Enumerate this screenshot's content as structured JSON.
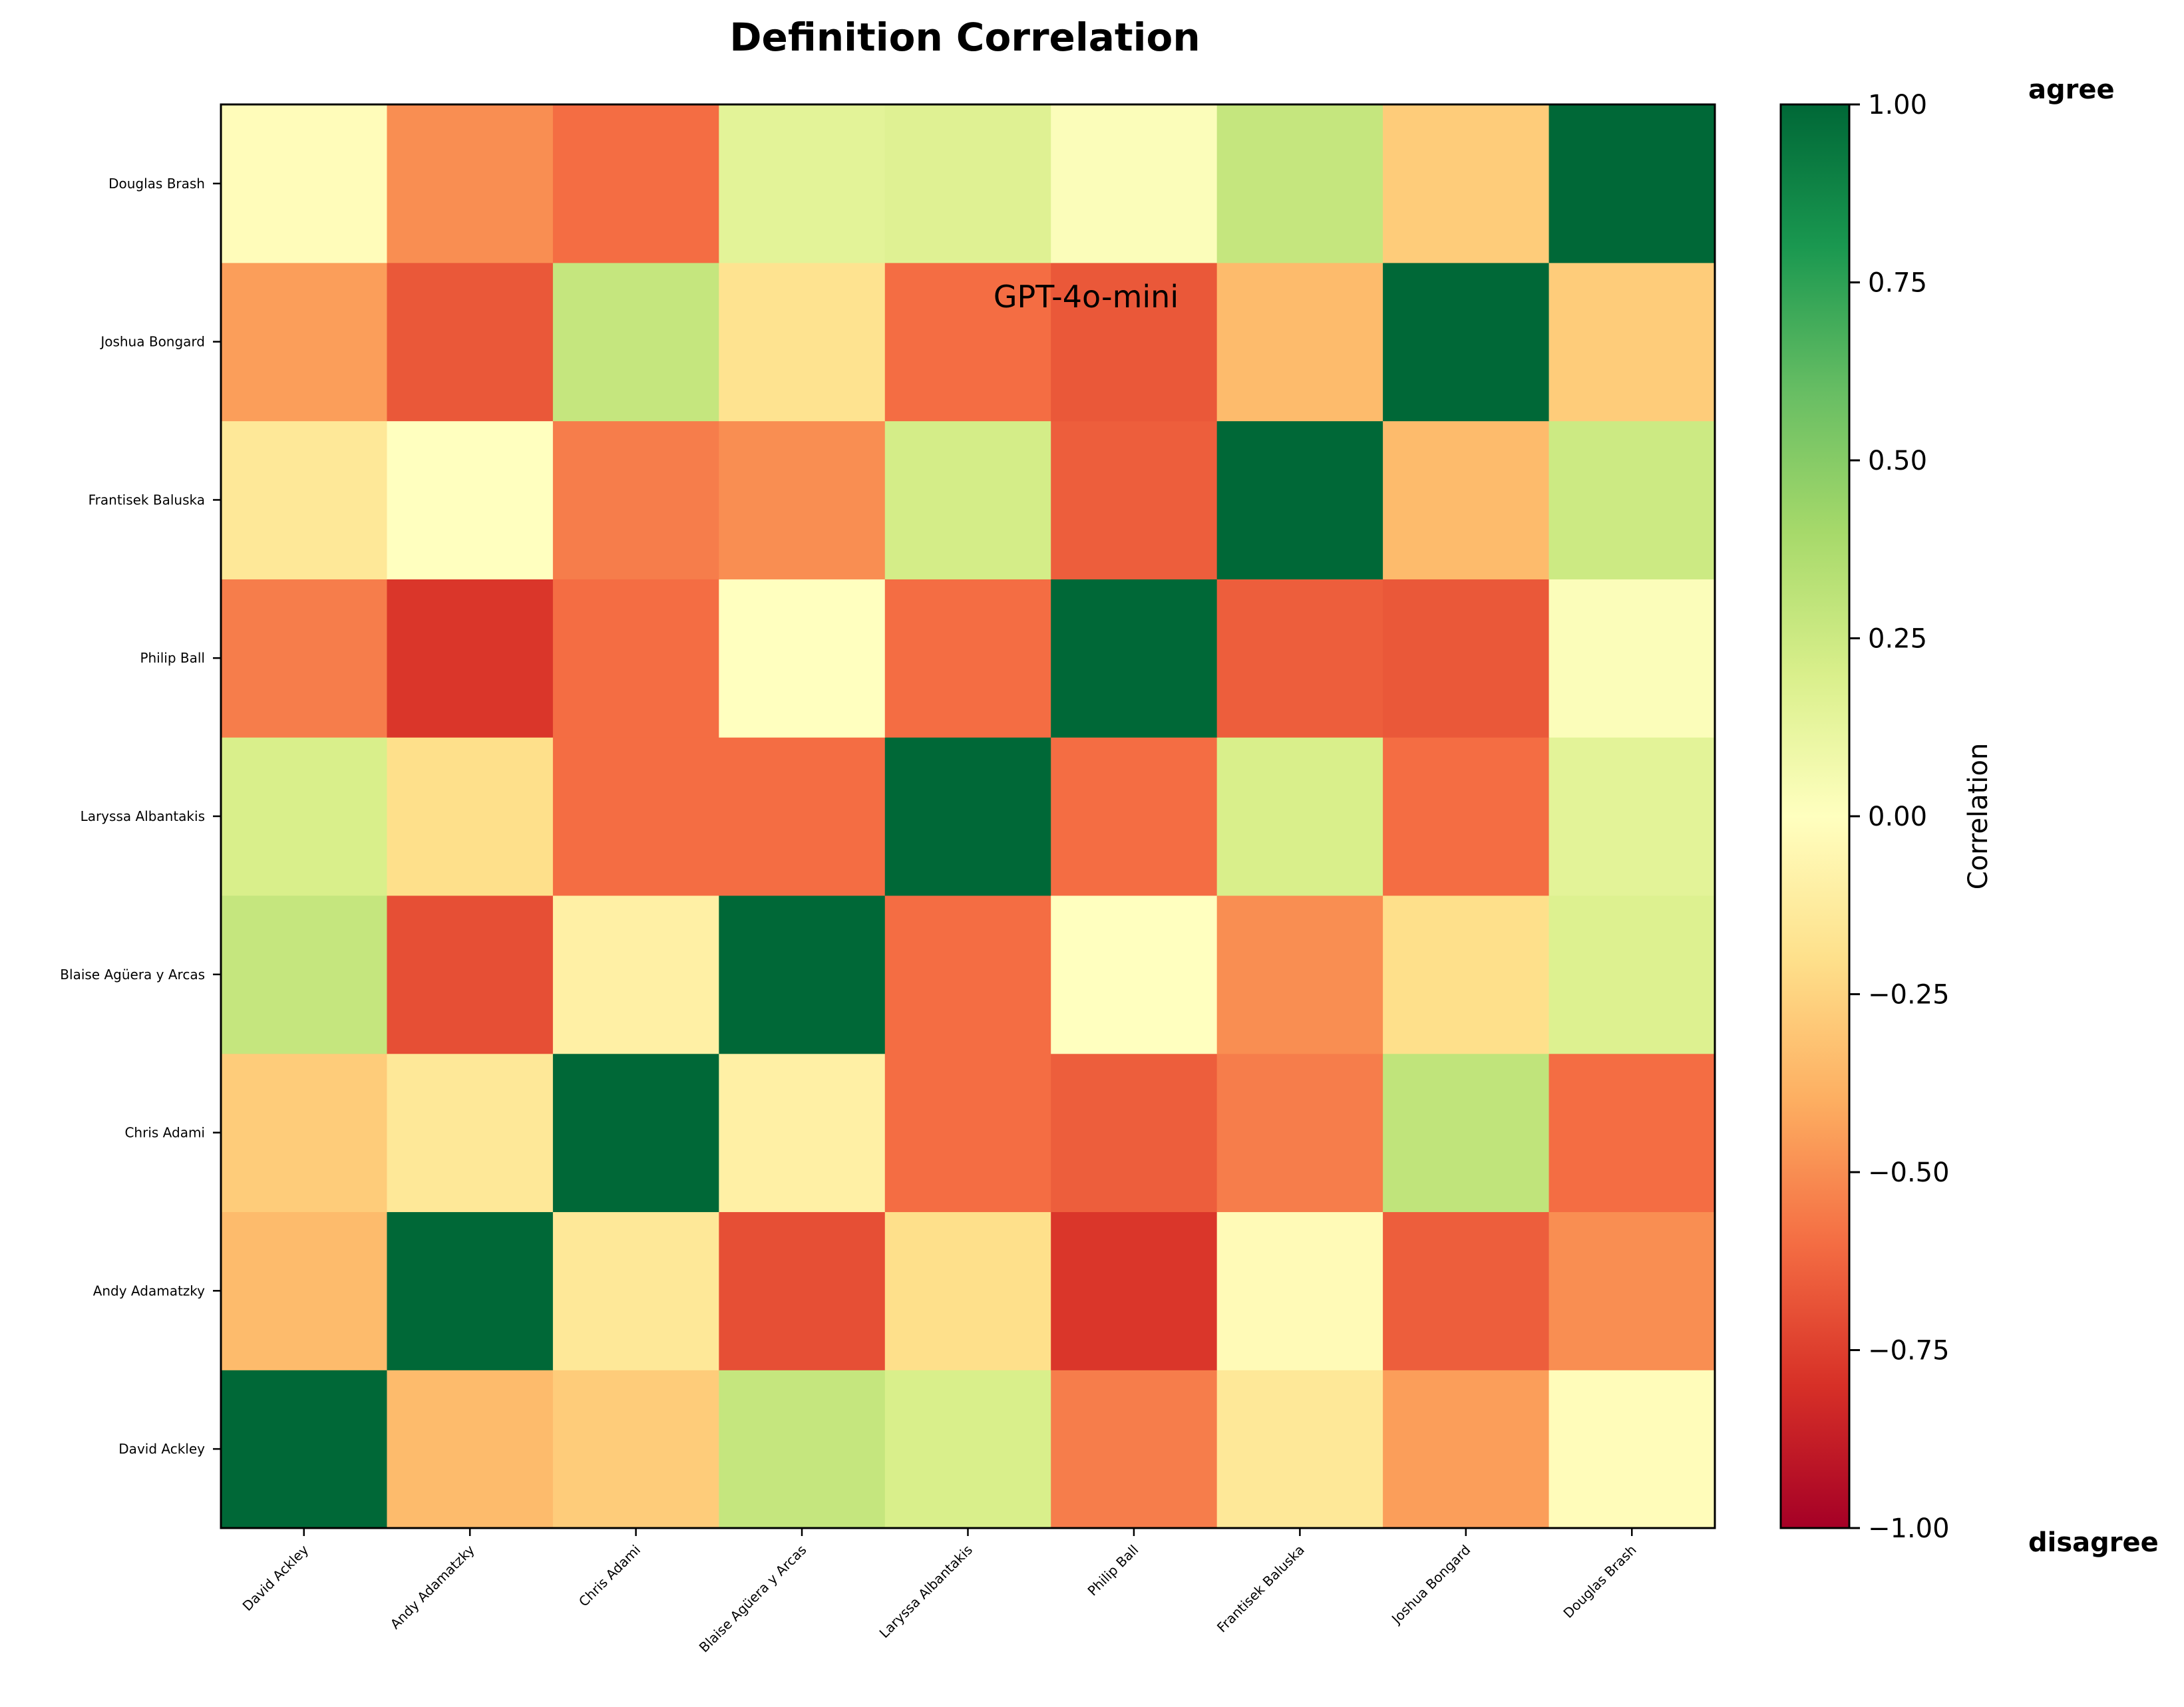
{
  "chart_data": {
    "type": "heatmap",
    "title": "Definition Correlation",
    "annotation": "GPT-4o-mini",
    "x_labels": [
      "David Ackley",
      "Andy Adamatzky",
      "Chris Adami",
      "Blaise Agüera y Arcas",
      "Laryssa Albantakis",
      "Philip Ball",
      "Frantisek Baluska",
      "Joshua Bongard",
      "Douglas Brash"
    ],
    "y_labels": [
      "David Ackley",
      "Andy Adamatzky",
      "Chris Adami",
      "Blaise Agüera y Arcas",
      "Laryssa Albantakis",
      "Philip Ball",
      "Frantisek Baluska",
      "Joshua Bongard",
      "Douglas Brash"
    ],
    "y_order": "bottom-to-top",
    "values": [
      [
        1.0,
        -0.35,
        -0.28,
        0.28,
        0.2,
        -0.55,
        -0.15,
        -0.45,
        -0.02
      ],
      [
        -0.35,
        1.0,
        -0.15,
        -0.7,
        -0.2,
        -0.78,
        -0.03,
        -0.65,
        -0.5
      ],
      [
        -0.28,
        -0.15,
        1.0,
        -0.1,
        -0.6,
        -0.65,
        -0.55,
        0.3,
        -0.6
      ],
      [
        0.28,
        -0.7,
        -0.1,
        1.0,
        -0.6,
        0.0,
        -0.5,
        -0.2,
        0.18
      ],
      [
        0.2,
        -0.2,
        -0.6,
        -0.6,
        1.0,
        -0.6,
        0.2,
        -0.6,
        0.15
      ],
      [
        -0.55,
        -0.78,
        -0.6,
        0.0,
        -0.6,
        1.0,
        -0.65,
        -0.67,
        0.02
      ],
      [
        -0.15,
        0.0,
        -0.55,
        -0.5,
        0.22,
        -0.65,
        1.0,
        -0.35,
        0.25
      ],
      [
        -0.45,
        -0.67,
        0.28,
        -0.18,
        -0.6,
        -0.67,
        -0.35,
        1.0,
        -0.28
      ],
      [
        -0.02,
        -0.5,
        -0.6,
        0.15,
        0.17,
        0.02,
        0.28,
        -0.28,
        1.0
      ]
    ],
    "colorbar": {
      "label": "Correlation",
      "range": [
        -1.0,
        1.0
      ],
      "ticks": [
        "1.00",
        "0.75",
        "0.50",
        "0.25",
        "0.00",
        "−0.25",
        "−0.50",
        "−0.75",
        "−1.00"
      ],
      "tick_values": [
        1.0,
        0.75,
        0.5,
        0.25,
        0.0,
        -0.25,
        -0.5,
        -0.75,
        -1.0
      ],
      "colormap": "RdYlGn",
      "top_label": "agree",
      "bottom_label": "disagree"
    }
  }
}
